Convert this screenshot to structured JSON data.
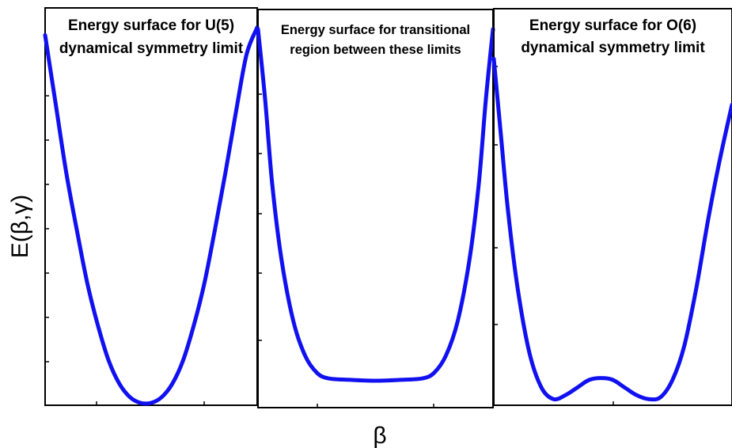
{
  "figure": {
    "ylabel": "E(β,γ)",
    "xlabel": "β",
    "curve_color": "#1010f0",
    "frame_color": "#000000"
  },
  "chart_data": [
    {
      "type": "line",
      "title_lines": [
        "Energy surface for U(5)",
        "dynamical symmetry limit"
      ],
      "grid": false,
      "legend": "none",
      "series": [
        {
          "color": "#1010f0",
          "points": [
            [
              0.0,
              0.96
            ],
            [
              0.05,
              0.78
            ],
            [
              0.1,
              0.6
            ],
            [
              0.15,
              0.45
            ],
            [
              0.2,
              0.31
            ],
            [
              0.25,
              0.2
            ],
            [
              0.3,
              0.11
            ],
            [
              0.35,
              0.05
            ],
            [
              0.4,
              0.015
            ],
            [
              0.45,
              0.0
            ],
            [
              0.5,
              0.0
            ],
            [
              0.55,
              0.015
            ],
            [
              0.6,
              0.05
            ],
            [
              0.65,
              0.11
            ],
            [
              0.7,
              0.2
            ],
            [
              0.75,
              0.31
            ],
            [
              0.8,
              0.45
            ],
            [
              0.85,
              0.6
            ],
            [
              0.9,
              0.76
            ],
            [
              0.95,
              0.91
            ],
            [
              1.0,
              0.98
            ]
          ]
        }
      ]
    },
    {
      "type": "line",
      "title_lines": [
        "Energy surface for transitional",
        "region between these limits"
      ],
      "grid": false,
      "legend": "none",
      "series": [
        {
          "color": "#1010f0",
          "points": [
            [
              0.0,
              0.98
            ],
            [
              0.03,
              0.8
            ],
            [
              0.06,
              0.58
            ],
            [
              0.1,
              0.38
            ],
            [
              0.15,
              0.22
            ],
            [
              0.2,
              0.13
            ],
            [
              0.25,
              0.085
            ],
            [
              0.3,
              0.07
            ],
            [
              0.4,
              0.066
            ],
            [
              0.5,
              0.064
            ],
            [
              0.6,
              0.066
            ],
            [
              0.7,
              0.07
            ],
            [
              0.75,
              0.085
            ],
            [
              0.8,
              0.13
            ],
            [
              0.85,
              0.22
            ],
            [
              0.9,
              0.38
            ],
            [
              0.94,
              0.58
            ],
            [
              0.97,
              0.8
            ],
            [
              1.0,
              0.98
            ]
          ]
        }
      ]
    },
    {
      "type": "line",
      "title_lines": [
        "Energy surface for O(6)",
        "dynamical symmetry limit"
      ],
      "grid": false,
      "legend": "none",
      "series": [
        {
          "color": "#1010f0",
          "points": [
            [
              0.0,
              0.9
            ],
            [
              0.03,
              0.7
            ],
            [
              0.06,
              0.5
            ],
            [
              0.1,
              0.3
            ],
            [
              0.15,
              0.13
            ],
            [
              0.2,
              0.04
            ],
            [
              0.25,
              0.01
            ],
            [
              0.3,
              0.02
            ],
            [
              0.35,
              0.04
            ],
            [
              0.4,
              0.06
            ],
            [
              0.45,
              0.065
            ],
            [
              0.5,
              0.06
            ],
            [
              0.55,
              0.04
            ],
            [
              0.6,
              0.02
            ],
            [
              0.65,
              0.01
            ],
            [
              0.7,
              0.015
            ],
            [
              0.75,
              0.06
            ],
            [
              0.8,
              0.15
            ],
            [
              0.85,
              0.3
            ],
            [
              0.9,
              0.48
            ],
            [
              0.95,
              0.64
            ],
            [
              1.0,
              0.78
            ]
          ]
        }
      ]
    }
  ]
}
